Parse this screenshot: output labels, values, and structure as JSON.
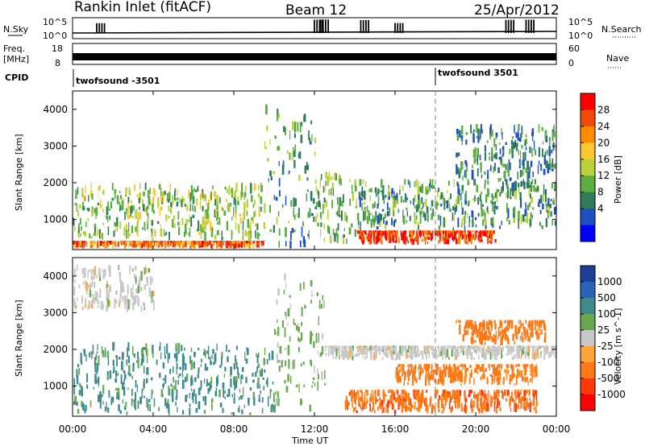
{
  "header": {
    "station": "Rankin Inlet (fitACF)",
    "beam": "Beam 12",
    "date": "25/Apr/2012"
  },
  "summary": {
    "nsky_label": "N.Sky",
    "nsearch_label": "N.Search",
    "count_top": "10^5",
    "count_bottom": "10^0",
    "freq_label_1": "Freq.",
    "freq_label_2": "[MHz]",
    "freq_ticks": [
      "18",
      "8"
    ],
    "nave_label": "Nave",
    "nave_ticks": [
      "60",
      "0"
    ],
    "cpid_label": "CPID",
    "cpid_segments": [
      {
        "label": "twofsound -3501",
        "start_hour": 0
      },
      {
        "label": "twofsound 3501",
        "start_hour": 18
      }
    ]
  },
  "axes": {
    "ylabel": "Slant Range [km]",
    "xlabel": "Time UT",
    "yticks": [
      "1000",
      "2000",
      "3000",
      "4000"
    ],
    "xticks": [
      "00:00",
      "04:00",
      "08:00",
      "12:00",
      "16:00",
      "20:00",
      "00:00"
    ]
  },
  "colorbars": {
    "power": {
      "label": "Power [dB]",
      "ticks": [
        "28",
        "24",
        "20",
        "16",
        "12",
        "8",
        "4"
      ],
      "colors": [
        "#ff0000",
        "#f04a0a",
        "#ff8c00",
        "#ffc832",
        "#b9d23c",
        "#5cae3e",
        "#2e7d5a",
        "#1e4fc0",
        "#0000ff"
      ]
    },
    "velocity": {
      "label": "Velocity [m s^-1]",
      "ticks": [
        "1000",
        "500",
        "100",
        "25",
        "-25",
        "-100",
        "-500",
        "-1000"
      ],
      "colors": [
        "#1d3f9a",
        "#2a63b8",
        "#3f8a8c",
        "#6aa84f",
        "#c8c8c8",
        "#ffa33a",
        "#ff7a14",
        "#ff3a0a",
        "#ff0000"
      ]
    }
  },
  "chart_data": [
    {
      "type": "line",
      "title": "N.Sky / N.Search",
      "x_unit": "hour UT",
      "x": [
        0,
        1.2,
        3,
        6,
        9,
        12,
        12.3,
        14.3,
        16,
        18,
        20.5,
        21.5,
        22.5,
        24
      ],
      "series": [
        {
          "name": "N.Sky",
          "values": [
            1000,
            8000,
            2000,
            1500,
            1200,
            80000,
            90000,
            60000,
            9000,
            1000,
            1500,
            70000,
            80000,
            2000
          ]
        }
      ],
      "ylim": [
        1,
        100000
      ],
      "yscale": "log"
    },
    {
      "type": "heatmap",
      "title": "Power",
      "ylabel": "Slant Range [km]",
      "xlabel": "Time UT",
      "xlim": [
        0,
        24
      ],
      "ylim": [
        180,
        4500
      ],
      "colorbar": "Power [dB]",
      "regions": [
        {
          "t0": 0,
          "t1": 9.5,
          "r0": 200,
          "r1": 420,
          "value": 26
        },
        {
          "t0": 0,
          "t1": 9.5,
          "r0": 420,
          "r1": 2000,
          "value": 14
        },
        {
          "t0": 9.5,
          "t1": 12,
          "r0": 200,
          "r1": 4300,
          "value": 10
        },
        {
          "t0": 12,
          "t1": 14,
          "r0": 300,
          "r1": 2300,
          "value": 12
        },
        {
          "t0": 14,
          "t1": 21,
          "r0": 300,
          "r1": 700,
          "value": 30
        },
        {
          "t0": 14,
          "t1": 24,
          "r0": 700,
          "r1": 2100,
          "value": 10
        },
        {
          "t0": 19,
          "t1": 24,
          "r0": 2000,
          "r1": 3600,
          "value": 8
        }
      ]
    },
    {
      "type": "heatmap",
      "title": "Velocity",
      "ylabel": "Slant Range [km]",
      "xlabel": "Time UT",
      "xlim": [
        0,
        24
      ],
      "ylim": [
        180,
        4500
      ],
      "colorbar": "Velocity [m s^-1]",
      "regions": [
        {
          "t0": 0,
          "t1": 10,
          "r0": 200,
          "r1": 2200,
          "value": 150
        },
        {
          "t0": 0,
          "t1": 4,
          "r0": 3000,
          "r1": 4300,
          "value": 0
        },
        {
          "t0": 10,
          "t1": 12.5,
          "r0": 300,
          "r1": 4300,
          "value": 50
        },
        {
          "t0": 12.5,
          "t1": 24,
          "r0": 1700,
          "r1": 2100,
          "value": 0
        },
        {
          "t0": 13.5,
          "t1": 23,
          "r0": 250,
          "r1": 900,
          "value": -400
        },
        {
          "t0": 16,
          "t1": 23,
          "r0": 1000,
          "r1": 1600,
          "value": -200
        },
        {
          "t0": 19,
          "t1": 23.5,
          "r0": 2100,
          "r1": 2800,
          "value": -300
        }
      ]
    }
  ]
}
